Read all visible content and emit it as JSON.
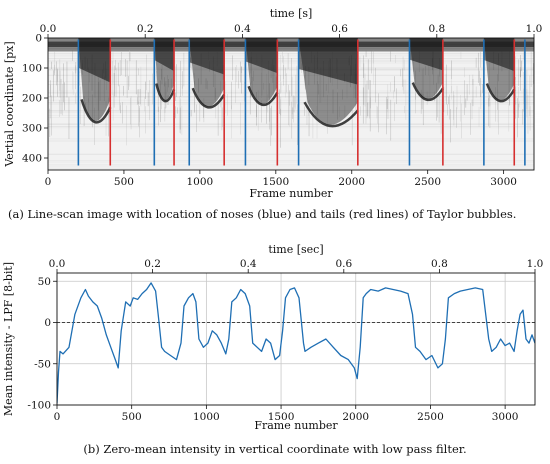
{
  "chart_data": [
    {
      "type": "heatmap",
      "top_xlabel": "time [s]",
      "xlabel": "Frame number",
      "ylabel": "Vertial coordinate [px]",
      "xlim": [
        0,
        3200
      ],
      "ylim": [
        440,
        0
      ],
      "time_lim": [
        0.0,
        1.0
      ],
      "xticks": [
        0,
        500,
        1000,
        1500,
        2000,
        2500,
        3000
      ],
      "yticks": [
        0,
        100,
        200,
        300,
        400
      ],
      "time_ticks": [
        "0.0",
        "0.2",
        "0.4",
        "0.6",
        "0.8",
        "1.0"
      ],
      "noses": [
        200,
        700,
        930,
        1300,
        1650,
        2380,
        2870,
        3140
      ],
      "tails": [
        410,
        830,
        1160,
        1510,
        2040,
        2600,
        3070
      ],
      "bubble_bottoms": [
        {
          "start": 200,
          "end": 410,
          "depth": 330
        },
        {
          "start": 700,
          "end": 830,
          "depth": 245
        },
        {
          "start": 930,
          "end": 1160,
          "depth": 270
        },
        {
          "start": 1300,
          "end": 1510,
          "depth": 260
        },
        {
          "start": 1650,
          "end": 2040,
          "depth": 345
        },
        {
          "start": 2380,
          "end": 2600,
          "depth": 240
        },
        {
          "start": 2870,
          "end": 3070,
          "depth": 245
        }
      ],
      "nose_color": "#1f6fb4",
      "tail_color": "#d62f2f",
      "caption": "(a) Line-scan image with location of noses (blue) and tails (red lines) of Taylor bubbles."
    },
    {
      "type": "line",
      "top_xlabel": "time [sec]",
      "xlabel": "Frame number",
      "ylabel": "Mean intensity - LPF [8-bit]",
      "xlim": [
        0,
        3200
      ],
      "ylim": [
        -100,
        60
      ],
      "time_lim": [
        0.0,
        1.0
      ],
      "xticks": [
        0,
        500,
        1000,
        1500,
        2000,
        2500,
        3000
      ],
      "yticks": [
        -100,
        -50,
        0,
        50
      ],
      "time_ticks": [
        "0.0",
        "0.2",
        "0.4",
        "0.6",
        "0.8",
        "1.0"
      ],
      "grid": true,
      "zero_line": "dashed",
      "series": [
        {
          "color": "#1f6fb4",
          "x": [
            0,
            10,
            20,
            40,
            80,
            120,
            160,
            190,
            210,
            240,
            270,
            300,
            330,
            360,
            390,
            410,
            430,
            460,
            490,
            510,
            540,
            570,
            600,
            630,
            660,
            680,
            700,
            720,
            760,
            800,
            830,
            850,
            880,
            910,
            930,
            950,
            980,
            1010,
            1040,
            1070,
            1100,
            1130,
            1150,
            1170,
            1200,
            1230,
            1260,
            1290,
            1310,
            1340,
            1370,
            1400,
            1430,
            1460,
            1490,
            1510,
            1530,
            1560,
            1590,
            1620,
            1650,
            1660,
            1700,
            1750,
            1800,
            1850,
            1900,
            1950,
            1990,
            2010,
            2030,
            2050,
            2070,
            2100,
            2150,
            2200,
            2250,
            2300,
            2350,
            2380,
            2400,
            2430,
            2470,
            2510,
            2550,
            2580,
            2600,
            2620,
            2660,
            2700,
            2750,
            2800,
            2850,
            2870,
            2890,
            2910,
            2940,
            2970,
            3000,
            3030,
            3060,
            3080,
            3100,
            3120,
            3140,
            3160,
            3180,
            3200
          ],
          "y": [
            -98,
            -60,
            -35,
            -38,
            -30,
            10,
            30,
            40,
            32,
            25,
            20,
            5,
            -15,
            -30,
            -45,
            -55,
            -10,
            25,
            20,
            30,
            28,
            35,
            40,
            48,
            38,
            5,
            -30,
            -35,
            -40,
            -45,
            -25,
            20,
            30,
            35,
            25,
            -20,
            -30,
            -25,
            -10,
            -15,
            -25,
            -38,
            -20,
            25,
            30,
            40,
            35,
            20,
            -25,
            -30,
            -35,
            -20,
            -25,
            -45,
            -40,
            -10,
            30,
            40,
            42,
            30,
            -25,
            -35,
            -30,
            -25,
            -20,
            -30,
            -40,
            -45,
            -55,
            -68,
            -30,
            30,
            35,
            40,
            38,
            42,
            40,
            38,
            35,
            10,
            -30,
            -35,
            -45,
            -40,
            -55,
            -50,
            -20,
            30,
            35,
            38,
            40,
            42,
            40,
            10,
            -20,
            -35,
            -30,
            -20,
            -28,
            -25,
            -35,
            -10,
            10,
            15,
            -20,
            -25,
            -15,
            -25
          ]
        }
      ],
      "caption": "(b) Zero-mean intensity in vertical coordinate with low pass filter."
    }
  ]
}
